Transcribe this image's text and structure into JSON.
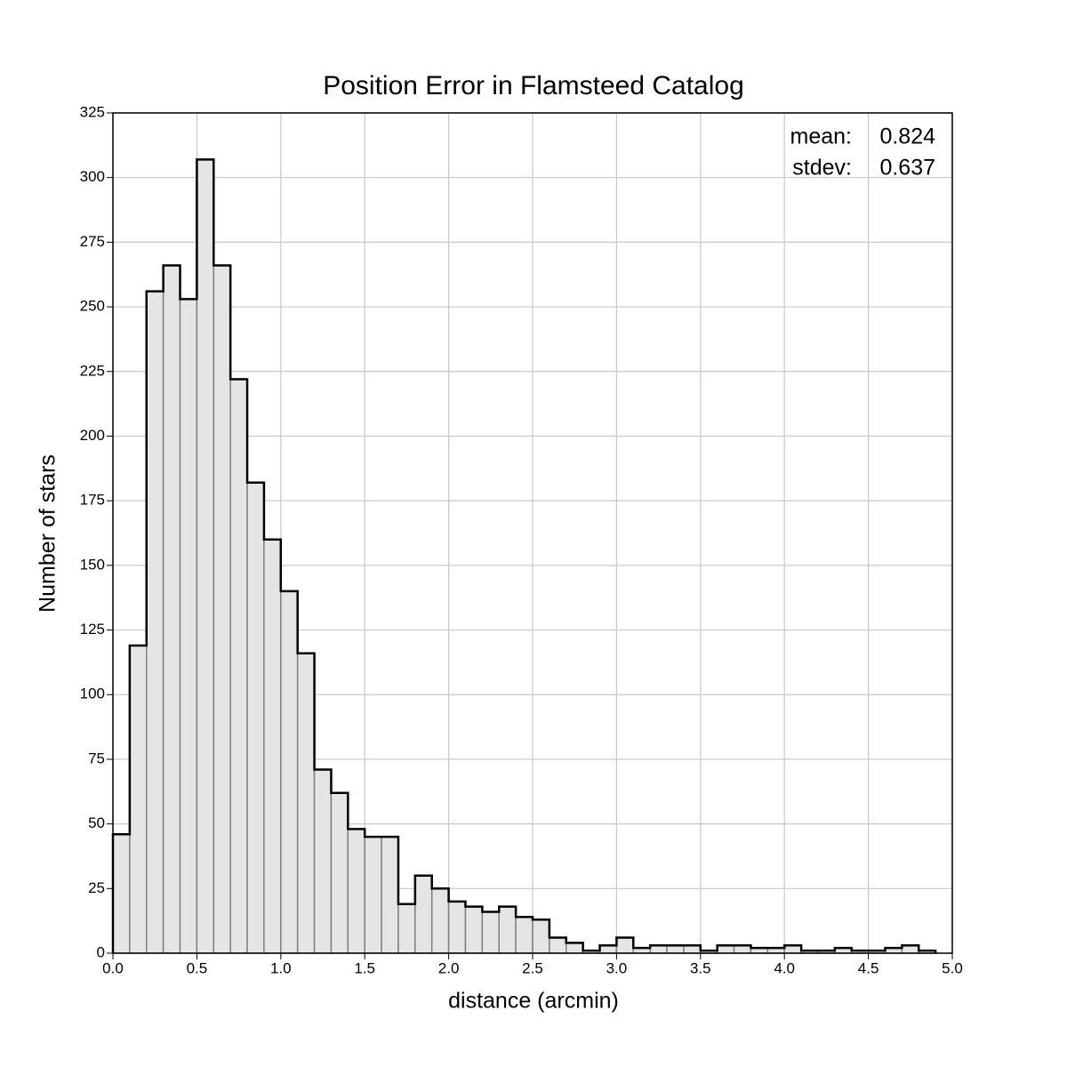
{
  "chart_data": {
    "type": "histogram",
    "title": "Position Error in Flamsteed Catalog",
    "x_label": "distance (arcmin)",
    "y_label": "Number of stars",
    "bins": [
      0,
      0.1,
      0.2,
      0.3,
      0.4,
      0.5,
      0.6,
      0.7,
      0.8,
      0.9,
      1,
      1.1,
      1.2,
      1.3,
      1.4,
      1.5,
      1.6,
      1.7,
      1.8,
      1.9,
      2,
      2.1,
      2.2,
      2.3,
      2.4,
      2.5,
      2.6,
      2.7,
      2.8,
      2.9,
      3,
      3.1,
      3.2,
      3.3,
      3.4,
      3.5,
      3.6,
      3.7,
      3.8,
      3.9,
      4,
      4.1,
      4.2,
      4.3,
      4.4,
      4.5,
      4.6,
      4.7,
      4.8,
      4.9
    ],
    "values": [
      46,
      119,
      256,
      266,
      253,
      307,
      266,
      222,
      182,
      160,
      140,
      116,
      71,
      62,
      48,
      45,
      45,
      19,
      30,
      25,
      20,
      18,
      16,
      18,
      14,
      13,
      6,
      4,
      1,
      3,
      6,
      2,
      3,
      3,
      3,
      1,
      3,
      3,
      2,
      2,
      3,
      1,
      1,
      2,
      1,
      1,
      2,
      3,
      1
    ],
    "color": "#e5e5e5",
    "edge_color": "#000000",
    "xlim": [
      0,
      5
    ],
    "xticks": [
      {
        "value": 0,
        "label": "0.0"
      },
      0.5,
      {
        "value": 1,
        "label": "1.0"
      },
      1.5,
      {
        "value": 2,
        "label": "2.0"
      },
      2.5,
      {
        "value": 3,
        "label": "3.0"
      },
      3.5,
      {
        "value": 4,
        "label": "4.0"
      },
      4.5,
      {
        "value": 5,
        "label": "5.0"
      }
    ],
    "ylim": [
      0,
      325
    ],
    "yticks": [
      0,
      25,
      50,
      75,
      100,
      125,
      150,
      175,
      200,
      225,
      250,
      275,
      300,
      325
    ],
    "grid": true,
    "stats": [
      {
        "label": "mean:",
        "value": 0.824
      },
      {
        "label": "stdev:",
        "value": 0.637
      }
    ]
  }
}
